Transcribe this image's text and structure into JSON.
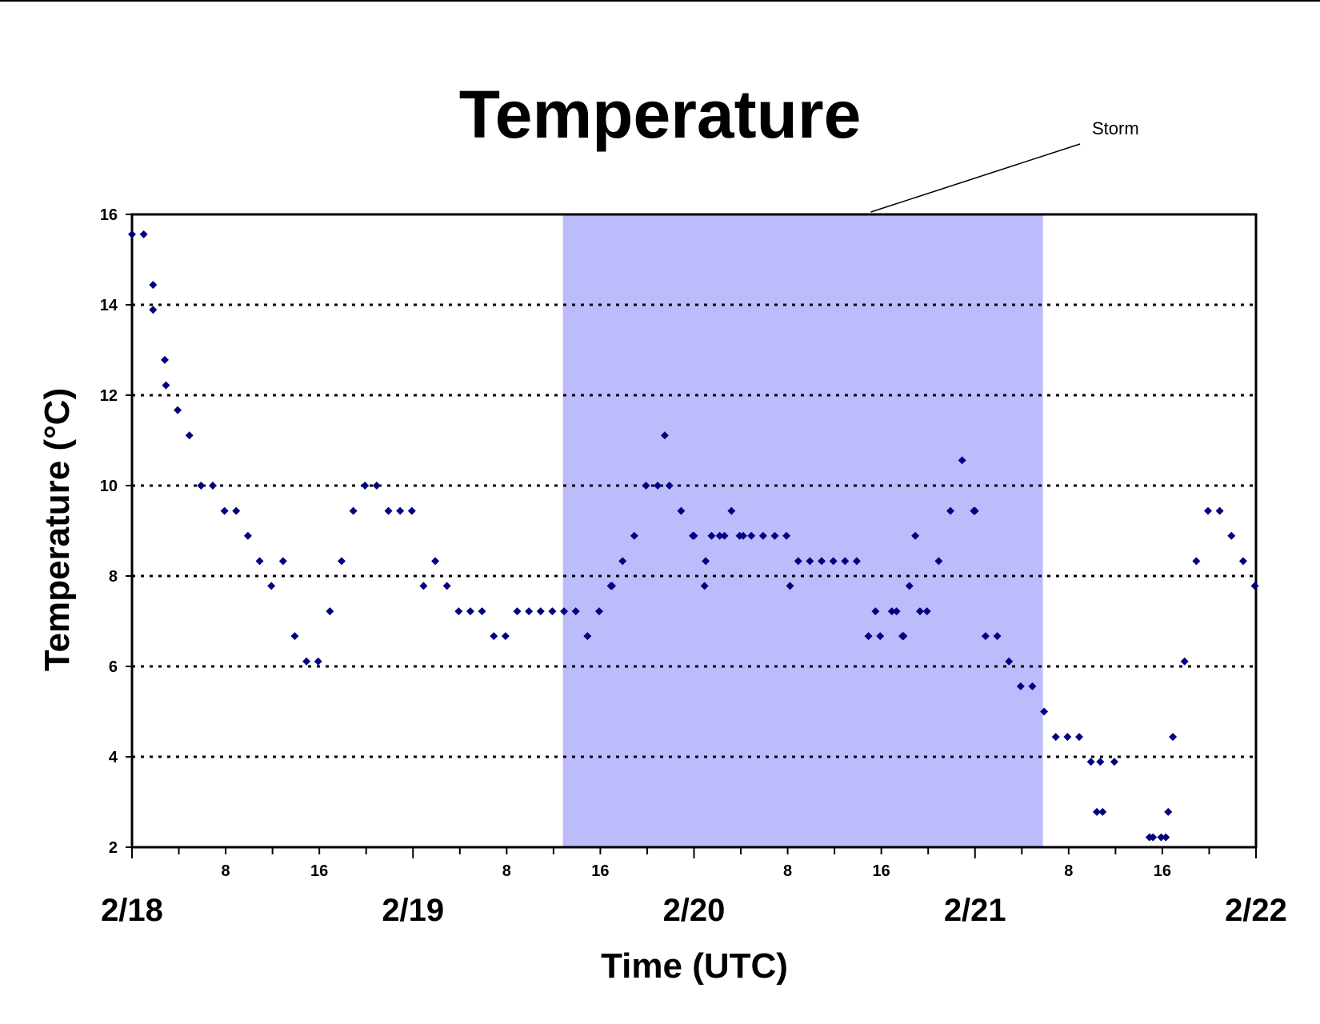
{
  "chart_data": {
    "type": "scatter",
    "title": "Temperature",
    "xlabel": "Time (UTC)",
    "ylabel": "Temperature (°C)",
    "ylim": [
      2,
      16
    ],
    "yticks": [
      "2",
      "4",
      "6",
      "8",
      "10",
      "12",
      "14",
      "16"
    ],
    "xlim_hours": [
      0,
      96
    ],
    "x_date_labels": [
      {
        "hour": 0,
        "label": "2/18"
      },
      {
        "hour": 24,
        "label": "2/19"
      },
      {
        "hour": 48,
        "label": "2/20"
      },
      {
        "hour": 72,
        "label": "2/21"
      },
      {
        "hour": 96,
        "label": "2/22"
      }
    ],
    "x_hour_labels": [
      {
        "hour": 8,
        "label": "8"
      },
      {
        "hour": 16,
        "label": "16"
      },
      {
        "hour": 32,
        "label": "8"
      },
      {
        "hour": 40,
        "label": "16"
      },
      {
        "hour": 56,
        "label": "8"
      },
      {
        "hour": 64,
        "label": "16"
      },
      {
        "hour": 80,
        "label": "8"
      },
      {
        "hour": 88,
        "label": "16"
      }
    ],
    "grid": "horizontal dotted",
    "shaded_region": {
      "x_start_hour": 36.8,
      "x_end_hour": 77.8,
      "label": "Storm",
      "color": "#bcbcfc"
    },
    "marker_color": "#000080",
    "series": [
      {
        "points": [
          [
            0.0,
            15.56
          ],
          [
            1.0,
            15.56
          ],
          [
            1.8,
            14.44
          ],
          [
            1.8,
            13.89
          ],
          [
            2.8,
            12.78
          ],
          [
            2.9,
            12.22
          ],
          [
            3.9,
            11.67
          ],
          [
            4.9,
            11.11
          ],
          [
            5.9,
            10.0
          ],
          [
            6.9,
            10.0
          ],
          [
            7.9,
            9.44
          ],
          [
            8.9,
            9.44
          ],
          [
            9.9,
            8.89
          ],
          [
            10.9,
            8.33
          ],
          [
            11.9,
            7.78
          ],
          [
            12.9,
            8.33
          ],
          [
            13.9,
            6.67
          ],
          [
            14.9,
            6.11
          ],
          [
            15.9,
            6.11
          ],
          [
            16.9,
            7.22
          ],
          [
            17.9,
            8.33
          ],
          [
            18.9,
            9.44
          ],
          [
            19.9,
            10.0
          ],
          [
            20.9,
            10.0
          ],
          [
            21.9,
            9.44
          ],
          [
            22.9,
            9.44
          ],
          [
            23.9,
            9.44
          ],
          [
            24.9,
            7.78
          ],
          [
            25.9,
            8.33
          ],
          [
            26.9,
            7.78
          ],
          [
            27.9,
            7.22
          ],
          [
            28.9,
            7.22
          ],
          [
            29.9,
            7.22
          ],
          [
            30.9,
            6.67
          ],
          [
            31.9,
            6.67
          ],
          [
            32.9,
            7.22
          ],
          [
            33.9,
            7.22
          ],
          [
            34.9,
            7.22
          ],
          [
            35.9,
            7.22
          ],
          [
            36.9,
            7.22
          ],
          [
            37.9,
            7.22
          ],
          [
            38.9,
            6.67
          ],
          [
            39.9,
            7.22
          ],
          [
            40.9,
            7.78
          ],
          [
            41.0,
            7.78
          ],
          [
            41.9,
            8.33
          ],
          [
            42.9,
            8.89
          ],
          [
            43.9,
            10.0
          ],
          [
            44.9,
            10.0
          ],
          [
            45.5,
            11.11
          ],
          [
            45.9,
            10.0
          ],
          [
            46.9,
            9.44
          ],
          [
            47.9,
            8.89
          ],
          [
            48.0,
            8.89
          ],
          [
            48.9,
            7.78
          ],
          [
            49.0,
            8.33
          ],
          [
            49.5,
            8.89
          ],
          [
            50.2,
            8.89
          ],
          [
            50.6,
            8.89
          ],
          [
            51.2,
            9.44
          ],
          [
            51.9,
            8.89
          ],
          [
            52.2,
            8.89
          ],
          [
            52.9,
            8.89
          ],
          [
            53.9,
            8.89
          ],
          [
            54.9,
            8.89
          ],
          [
            55.9,
            8.89
          ],
          [
            56.2,
            7.78
          ],
          [
            56.9,
            8.33
          ],
          [
            57.9,
            8.33
          ],
          [
            58.9,
            8.33
          ],
          [
            59.9,
            8.33
          ],
          [
            60.9,
            8.33
          ],
          [
            61.9,
            8.33
          ],
          [
            62.9,
            6.67
          ],
          [
            63.5,
            7.22
          ],
          [
            63.9,
            6.67
          ],
          [
            64.9,
            7.22
          ],
          [
            65.3,
            7.22
          ],
          [
            65.8,
            6.67
          ],
          [
            65.9,
            6.67
          ],
          [
            66.4,
            7.78
          ],
          [
            66.9,
            8.89
          ],
          [
            67.3,
            7.22
          ],
          [
            67.9,
            7.22
          ],
          [
            68.9,
            8.33
          ],
          [
            69.9,
            9.44
          ],
          [
            70.9,
            10.56
          ],
          [
            71.9,
            9.44
          ],
          [
            72.0,
            9.44
          ],
          [
            72.9,
            6.67
          ],
          [
            73.9,
            6.67
          ],
          [
            74.9,
            6.11
          ],
          [
            75.9,
            5.56
          ],
          [
            76.9,
            5.56
          ],
          [
            77.9,
            5.0
          ],
          [
            78.9,
            4.44
          ],
          [
            79.9,
            4.44
          ],
          [
            80.9,
            4.44
          ],
          [
            81.9,
            3.89
          ],
          [
            82.4,
            2.78
          ],
          [
            82.7,
            3.89
          ],
          [
            82.9,
            2.78
          ],
          [
            83.9,
            3.89
          ],
          [
            86.9,
            2.22
          ],
          [
            87.2,
            2.22
          ],
          [
            87.9,
            2.22
          ],
          [
            88.3,
            2.22
          ],
          [
            88.5,
            2.78
          ],
          [
            88.9,
            4.44
          ],
          [
            89.9,
            6.11
          ],
          [
            90.9,
            8.33
          ],
          [
            91.9,
            9.44
          ],
          [
            92.9,
            9.44
          ],
          [
            93.9,
            8.89
          ],
          [
            94.9,
            8.33
          ],
          [
            95.9,
            7.78
          ]
        ]
      }
    ]
  }
}
